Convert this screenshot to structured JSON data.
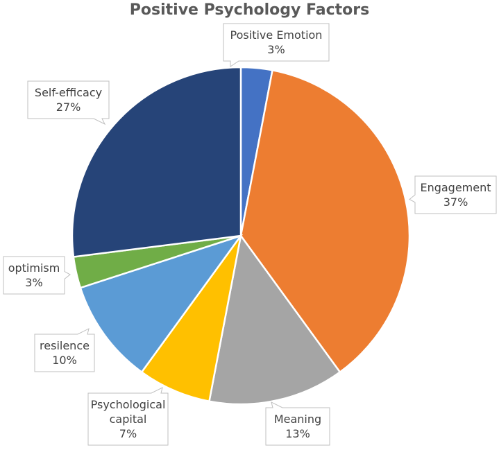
{
  "chart_data": {
    "type": "pie",
    "title": "Positive Psychology Factors",
    "slices": [
      {
        "label": "Positive Emotion",
        "value": 3,
        "pct": "3%",
        "color": "#4472C4"
      },
      {
        "label": "Engagement",
        "value": 37,
        "pct": "37%",
        "color": "#ED7D31"
      },
      {
        "label": "Meaning",
        "value": 13,
        "pct": "13%",
        "color": "#A5A5A5"
      },
      {
        "label": "Psychological capital",
        "value": 7,
        "pct": "7%",
        "color": "#FFC000"
      },
      {
        "label": "resilence",
        "value": 10,
        "pct": "10%",
        "color": "#5B9BD5"
      },
      {
        "label": "optimism",
        "value": 3,
        "pct": "3%",
        "color": "#70AD47"
      },
      {
        "label": "Self-efficacy",
        "value": 27,
        "pct": "27%",
        "color": "#264478"
      }
    ],
    "legend": "none",
    "data_labels": "callouts with category name and percentage"
  }
}
